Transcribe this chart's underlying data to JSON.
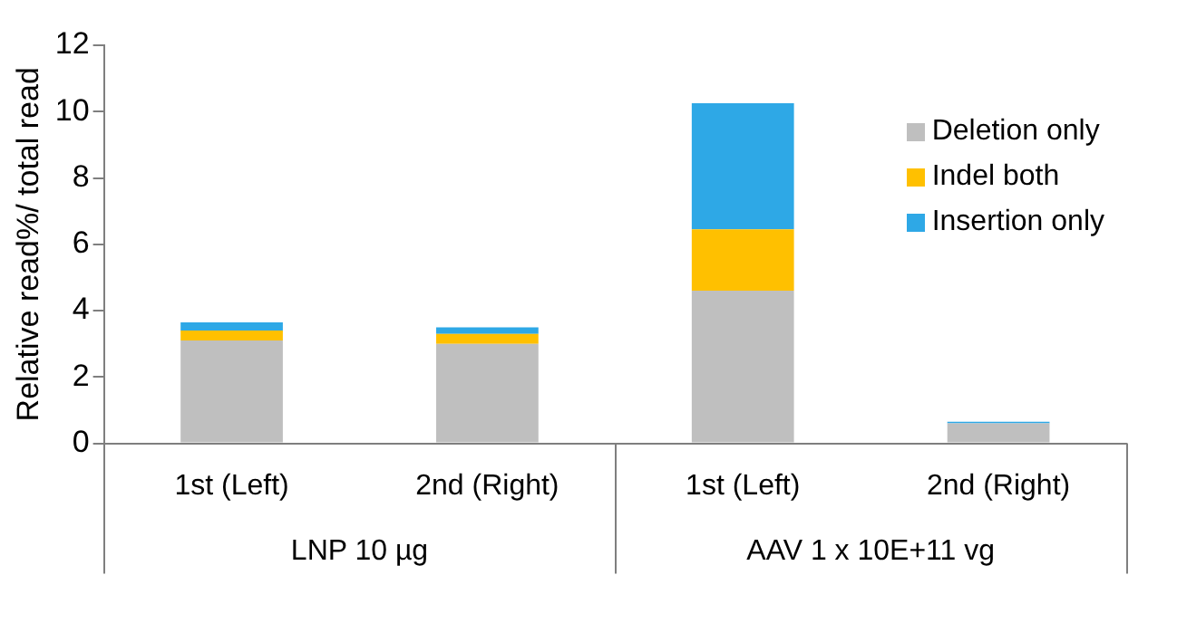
{
  "chart_data": {
    "type": "bar",
    "stacked": true,
    "ylabel": "Relative read%/ total read",
    "categories": [
      "1st (Left)",
      "2nd (Right)",
      "1st (Left)",
      "2nd (Right)"
    ],
    "annotations": [
      "LNP 10 µg",
      "AAV 1 x 10E+11 vg"
    ],
    "series": [
      {
        "name": "Deletion only",
        "color": "#bfbfbf",
        "values": [
          3.1,
          3.0,
          4.6,
          0.6
        ]
      },
      {
        "name": "Indel both",
        "color": "#ffc000",
        "values": [
          0.3,
          0.3,
          1.85,
          0
        ]
      },
      {
        "name": "Insertion only",
        "color": "#2ea8e6",
        "values": [
          0.25,
          0.2,
          3.8,
          0.05
        ]
      }
    ],
    "ylim": [
      0,
      12
    ],
    "yticks": [
      0,
      2,
      4,
      6,
      8,
      10,
      12
    ],
    "grid": false,
    "legend": "top right"
  }
}
